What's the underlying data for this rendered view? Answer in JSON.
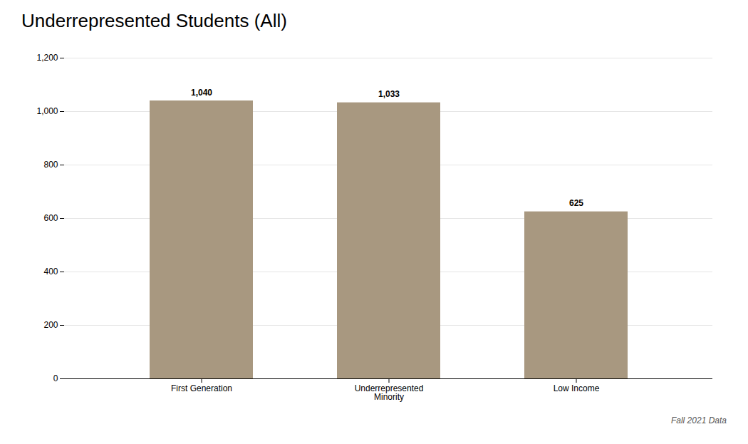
{
  "chart_data": {
    "type": "bar",
    "title": "Underrepresented Students (All)",
    "categories": [
      "First Generation",
      "Underrepresented\nMinority",
      "Low Income"
    ],
    "values": [
      1040,
      1033,
      625
    ],
    "value_labels": [
      "1,040",
      "1,033",
      "625"
    ],
    "color": "#a89880",
    "ylim": [
      0,
      1200
    ],
    "yticks": [
      0,
      200,
      400,
      600,
      800,
      {
        "value": 1000,
        "label": "1,000"
      },
      {
        "value": 1200,
        "label": "1,200"
      }
    ],
    "grid": true,
    "data_labels": true,
    "annotation": "Fall 2021 Data"
  }
}
